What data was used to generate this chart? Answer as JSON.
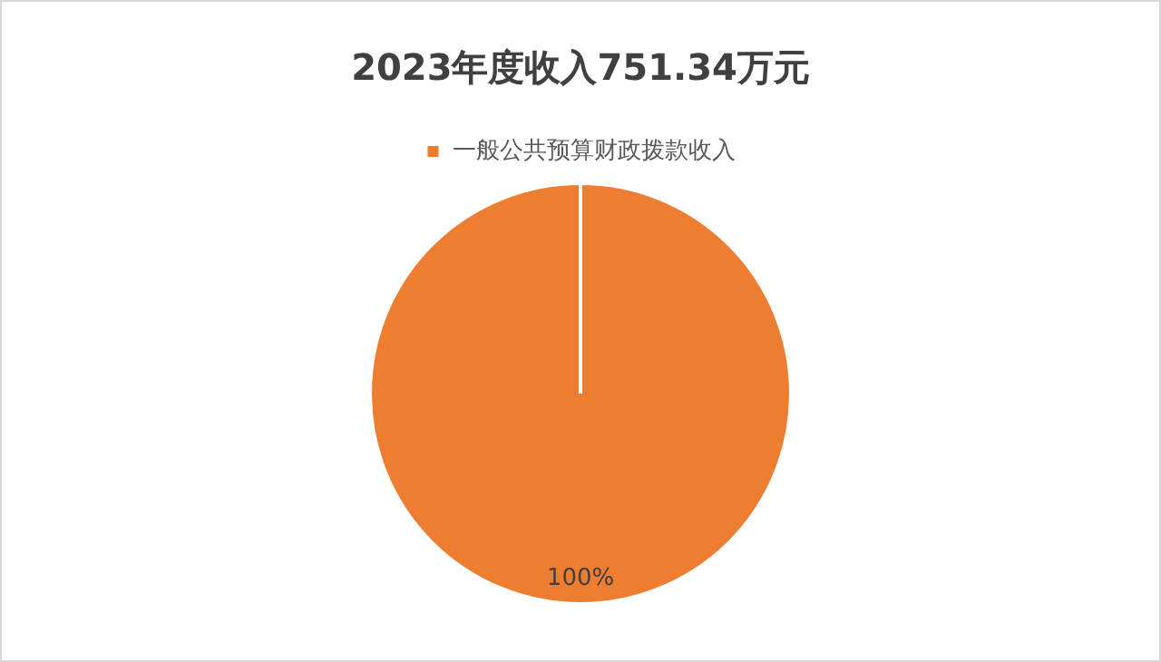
{
  "chart_data": {
    "type": "pie",
    "title": "2023年度收入751.34万元",
    "categories": [
      "一般公共预算财政拨款收入"
    ],
    "values": [
      100
    ],
    "colors": [
      "#ed7d31"
    ],
    "value_labels": [
      "100%"
    ],
    "legend": "top"
  }
}
